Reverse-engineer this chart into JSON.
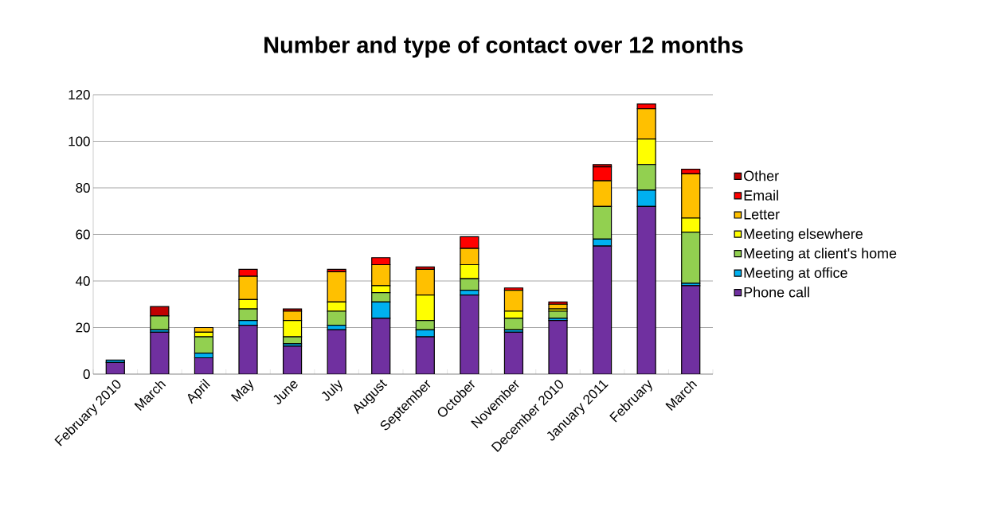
{
  "chart_data": {
    "type": "bar",
    "title": "Number and type of contact over 12 months",
    "stacked": true,
    "grid": "y",
    "legend": "right",
    "categories": [
      "February 2010",
      "March",
      "April",
      "May",
      "June",
      "July",
      "August",
      "September",
      "October",
      "November",
      "December 2010",
      "January 2011",
      "February",
      "March"
    ],
    "ylim": [
      0,
      120
    ],
    "yticks": [
      0,
      20,
      40,
      60,
      80,
      100,
      120
    ],
    "series": [
      {
        "name": "Phone call",
        "color": "#7030a0",
        "values": [
          5,
          18,
          7,
          21,
          12,
          19,
          24,
          16,
          34,
          18,
          23,
          55,
          72,
          38
        ]
      },
      {
        "name": "Meeting at office",
        "color": "#00b0f0",
        "values": [
          1,
          1,
          2,
          2,
          1,
          2,
          7,
          3,
          2,
          1,
          1,
          3,
          7,
          1
        ]
      },
      {
        "name": "Meeting at client's home",
        "color": "#92d050",
        "values": [
          0,
          6,
          7,
          5,
          3,
          6,
          4,
          4,
          5,
          5,
          3,
          14,
          11,
          22
        ]
      },
      {
        "name": "Meeting elsewhere",
        "color": "#ffff00",
        "values": [
          0,
          0,
          2,
          4,
          7,
          4,
          3,
          11,
          6,
          3,
          1,
          0,
          11,
          6
        ]
      },
      {
        "name": "Letter",
        "color": "#ffc000",
        "values": [
          0,
          0,
          2,
          10,
          4,
          13,
          9,
          11,
          7,
          9,
          2,
          11,
          13,
          19
        ]
      },
      {
        "name": "Email",
        "color": "#ff0000",
        "values": [
          0,
          0,
          0,
          3,
          0,
          1,
          3,
          1,
          5,
          1,
          1,
          6,
          2,
          2
        ]
      },
      {
        "name": "Other",
        "color": "#c00000",
        "values": [
          0,
          4,
          0,
          0,
          1,
          0,
          0,
          0,
          0,
          0,
          0,
          1,
          0,
          0
        ]
      }
    ]
  }
}
